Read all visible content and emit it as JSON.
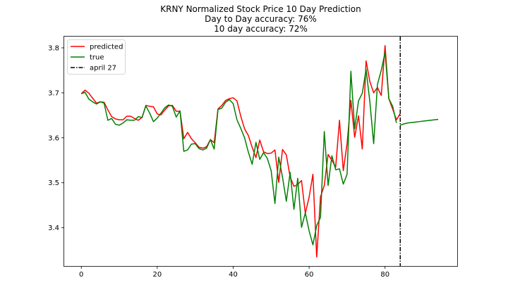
{
  "chart_data": {
    "type": "line",
    "title": "KRNY Normalized Stock Price 10 Day Prediction",
    "subtitle_lines": [
      "Day to Day accuracy: 76%",
      "10 day accuracy: 72%"
    ],
    "xlabel": "",
    "ylabel": "",
    "xlim": [
      -4.5,
      99
    ],
    "ylim": [
      3.315,
      3.825
    ],
    "xticks": [
      0,
      20,
      40,
      60,
      80
    ],
    "yticks": [
      3.4,
      3.5,
      3.6,
      3.7,
      3.8
    ],
    "ytick_labels": [
      "3.4",
      "3.5",
      "3.6",
      "3.7",
      "3.8"
    ],
    "grid": false,
    "legend_position": "top-left",
    "series": [
      {
        "name": "predicted",
        "color": "#ff0000",
        "x_start": 0,
        "values": [
          3.698,
          3.706,
          3.699,
          3.688,
          3.677,
          3.68,
          3.679,
          3.662,
          3.647,
          3.642,
          3.64,
          3.64,
          3.648,
          3.648,
          3.643,
          3.639,
          3.645,
          3.672,
          3.67,
          3.669,
          3.653,
          3.651,
          3.662,
          3.671,
          3.672,
          3.659,
          3.659,
          3.598,
          3.612,
          3.598,
          3.589,
          3.579,
          3.577,
          3.58,
          3.596,
          3.589,
          3.664,
          3.672,
          3.683,
          3.687,
          3.689,
          3.682,
          3.648,
          3.62,
          3.605,
          3.579,
          3.556,
          3.595,
          3.569,
          3.565,
          3.566,
          3.573,
          3.501,
          3.574,
          3.562,
          3.513,
          3.492,
          3.496,
          3.505,
          3.432,
          3.468,
          3.519,
          3.335,
          3.469,
          3.494,
          3.563,
          3.55,
          3.535,
          3.639,
          3.527,
          3.587,
          3.683,
          3.601,
          3.649,
          3.575,
          3.771,
          3.725,
          3.7,
          3.712,
          3.694,
          3.805,
          3.687,
          3.664,
          3.64,
          3.654
        ]
      },
      {
        "name": "true",
        "color": "#008000",
        "x_start": 0,
        "values": [
          3.698,
          3.701,
          3.686,
          3.68,
          3.675,
          3.68,
          3.677,
          3.639,
          3.643,
          3.63,
          3.628,
          3.633,
          3.64,
          3.639,
          3.639,
          3.647,
          3.645,
          3.671,
          3.655,
          3.636,
          3.644,
          3.655,
          3.667,
          3.673,
          3.67,
          3.646,
          3.66,
          3.57,
          3.573,
          3.586,
          3.587,
          3.576,
          3.573,
          3.577,
          3.596,
          3.575,
          3.663,
          3.666,
          3.679,
          3.685,
          3.676,
          3.64,
          3.621,
          3.6,
          3.568,
          3.541,
          3.59,
          3.552,
          3.567,
          3.554,
          3.527,
          3.454,
          3.557,
          3.512,
          3.459,
          3.523,
          3.441,
          3.51,
          3.401,
          3.433,
          3.393,
          3.362,
          3.405,
          3.423,
          3.614,
          3.494,
          3.56,
          3.529,
          3.531,
          3.497,
          3.519,
          3.748,
          3.62,
          3.682,
          3.699,
          3.752,
          3.68,
          3.587,
          3.719,
          3.75,
          3.79,
          3.687,
          3.67,
          3.633
        ]
      },
      {
        "name": "",
        "color": "#008000",
        "x_start": 84,
        "values": [
          3.628,
          3.631,
          3.633,
          3.634,
          3.635,
          3.636,
          3.637,
          3.638,
          3.639,
          3.64,
          3.641
        ]
      }
    ],
    "vline": {
      "name": "april 27",
      "x": 84,
      "color": "#000000",
      "style": "dashdot"
    }
  }
}
